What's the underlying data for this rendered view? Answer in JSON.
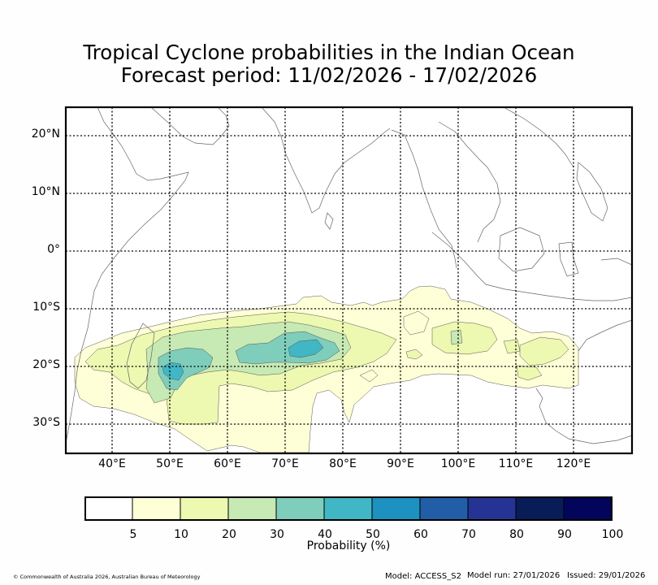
{
  "title": {
    "line1": "Tropical Cyclone probabilities in the Indian Ocean",
    "line2": "Forecast period: 11/02/2026 - 17/02/2026"
  },
  "map": {
    "lat_labels": [
      "20°N",
      "10°N",
      "0°",
      "10°S",
      "20°S",
      "30°S"
    ],
    "lon_labels": [
      "40°E",
      "50°E",
      "60°E",
      "70°E",
      "80°E",
      "90°E",
      "100°E",
      "110°E",
      "120°E"
    ],
    "lat_values": [
      20,
      10,
      0,
      -10,
      -20,
      -30
    ],
    "lon_values": [
      40,
      50,
      60,
      70,
      80,
      90,
      100,
      110,
      120
    ],
    "lon_range": [
      32,
      130
    ],
    "lat_range": [
      -35,
      25
    ],
    "probability_regions_pct": [
      {
        "name": "main-band",
        "min_pct": 5
      },
      {
        "name": "western-band",
        "min_pct": 10
      },
      {
        "name": "central-band",
        "min_pct": 20
      },
      {
        "name": "western-core",
        "min_pct": 30
      },
      {
        "name": "central-core",
        "min_pct": 30
      },
      {
        "name": "western-peak",
        "min_pct": 40
      },
      {
        "name": "central-peak",
        "min_pct": 40
      }
    ]
  },
  "colorbar": {
    "colors": [
      "#ffffff",
      "#ffffd7",
      "#edf8b1",
      "#c7e9b4",
      "#7fcdbb",
      "#41b6c4",
      "#1d91c0",
      "#225ea8",
      "#253494",
      "#081d58",
      "#03055a"
    ],
    "ticks": [
      "5",
      "10",
      "20",
      "30",
      "40",
      "50",
      "60",
      "70",
      "80",
      "90",
      "100"
    ],
    "label": "Probability (%)"
  },
  "footer": {
    "copyright": "© Commonwealth of Australia 2026, Australian Bureau of Meteorology",
    "model": "Model: ACCESS_S2",
    "model_run": "Model run: 27/01/2026",
    "issued": "Issued: 29/01/2026"
  }
}
